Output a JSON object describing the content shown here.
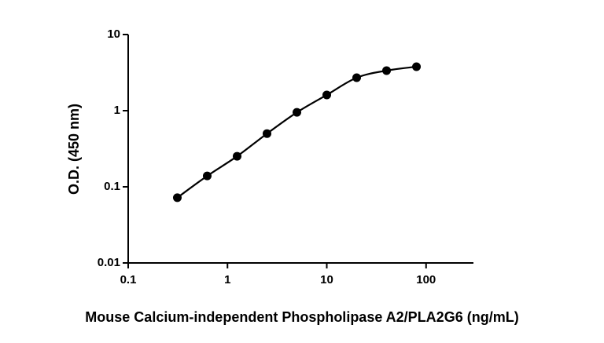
{
  "chart_data": {
    "type": "scatter",
    "x_label": "Mouse Calcium-independent Phospholipase A2/PLA2G6 (ng/mL)",
    "y_label": "O.D. (450 nm)",
    "x": [
      0.3125,
      0.625,
      1.25,
      2.5,
      5,
      10,
      20,
      40,
      80
    ],
    "values": [
      0.072,
      0.139,
      0.252,
      0.5,
      0.95,
      1.61,
      2.71,
      3.36,
      3.78
    ],
    "color": "#000000",
    "line": true,
    "x_log": true,
    "y_log": true,
    "xlim": [
      0.1,
      300
    ],
    "ylim": [
      0.01,
      10
    ],
    "xticks": [
      0.1,
      1,
      10,
      100
    ],
    "yticks": [
      0.01,
      0.1,
      1,
      10
    ]
  }
}
